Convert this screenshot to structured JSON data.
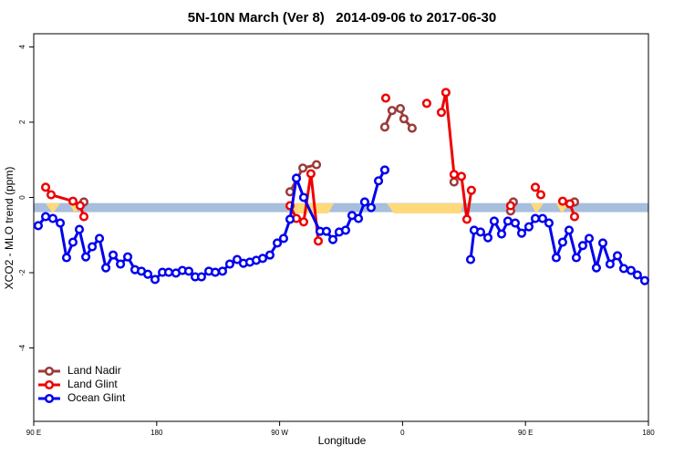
{
  "chart_data": {
    "type": "line",
    "title": "5N-10N March (Ver 8)   2014-09-06 to 2017-06-30",
    "x_label": "Longitude",
    "y_label": "XCO2 - MLO trend (ppm)",
    "xlim": [
      90,
      540
    ],
    "ylim": [
      -5.95,
      4.35
    ],
    "xticks": [
      {
        "value": 90,
        "label": "90 E"
      },
      {
        "value": 180,
        "label": "180"
      },
      {
        "value": 270,
        "label": "90 W"
      },
      {
        "value": 360,
        "label": "0"
      },
      {
        "value": 450,
        "label": "90 E"
      },
      {
        "value": 540,
        "label": "180"
      }
    ],
    "yticks": [
      -4,
      -2,
      0,
      2,
      4
    ],
    "band": {
      "ylim": [
        -0.39,
        -0.15
      ],
      "color": "#a7bedc"
    },
    "legend": "bottom-left",
    "series": [
      {
        "name": "Land Nadir",
        "color": "#9b3a3a",
        "x": [
          126.7,
          200,
          277.6,
          287.0,
          297.0,
          320,
          347.0,
          352.3,
          358.4,
          361.0,
          367.0,
          380,
          397.7,
          420,
          439.1,
          441.1,
          460,
          485.9
        ],
        "values": [
          -0.12,
          null,
          0.15,
          0.78,
          0.87,
          null,
          1.87,
          2.31,
          2.36,
          2.09,
          1.84,
          null,
          0.41,
          null,
          -0.36,
          -0.12,
          null,
          -0.12
        ]
      },
      {
        "name": "Land Glint",
        "color": "#ee0000",
        "x": [
          98.7,
          102.7,
          118.7,
          124.0,
          126.7,
          200,
          277.6,
          282.3,
          287.6,
          292.9,
          298.3,
          320,
          347.7,
          360,
          377.7,
          385,
          388.4,
          391.7,
          397.7,
          403.1,
          407.1,
          410.4,
          420,
          439.1,
          450,
          457.2,
          461.2,
          470,
          477.2,
          482.5,
          485.9
        ],
        "values": [
          0.27,
          0.07,
          -0.1,
          -0.22,
          -0.51,
          null,
          -0.22,
          -0.56,
          -0.65,
          0.63,
          -1.16,
          null,
          2.64,
          null,
          2.5,
          null,
          2.26,
          2.79,
          0.61,
          0.56,
          -0.58,
          0.19,
          null,
          -0.22,
          null,
          0.27,
          0.07,
          null,
          -0.1,
          -0.17,
          -0.51
        ]
      },
      {
        "name": "Ocean Glint",
        "color": "#0000ee",
        "x": [
          93.3,
          98.7,
          104.0,
          109.4,
          114.0,
          118.7,
          123.4,
          128.1,
          132.8,
          138.1,
          142.8,
          148.1,
          153.5,
          158.8,
          164.1,
          168.8,
          173.5,
          178.8,
          184.2,
          188.8,
          194.1,
          198.8,
          203.5,
          208.2,
          212.8,
          218.2,
          222.9,
          228.2,
          233.5,
          238.9,
          243.5,
          248.2,
          252.9,
          257.6,
          262.9,
          268.3,
          272.9,
          277.6,
          282.3,
          287.6,
          299.6,
          304.3,
          309.0,
          313.6,
          318.3,
          323.0,
          327.7,
          332.3,
          337.0,
          342.4,
          347.0,
          380,
          409.8,
          412.4,
          417.1,
          422.5,
          427.1,
          432.5,
          437.1,
          442.5,
          447.2,
          452.5,
          457.2,
          462.5,
          467.2,
          472.5,
          477.2,
          481.9,
          487.2,
          491.9,
          496.6,
          501.9,
          506.6,
          511.9,
          517.3,
          521.9,
          527.3,
          531.9,
          537.3
        ],
        "values": [
          -0.75,
          -0.51,
          -0.56,
          -0.68,
          -1.6,
          -1.19,
          -0.85,
          -1.58,
          -1.31,
          -1.09,
          -1.87,
          -1.53,
          -1.77,
          -1.58,
          -1.92,
          -1.96,
          -2.04,
          -2.18,
          -1.99,
          -1.99,
          -2.01,
          -1.94,
          -1.96,
          -2.11,
          -2.11,
          -1.96,
          -1.99,
          -1.96,
          -1.77,
          -1.65,
          -1.75,
          -1.72,
          -1.67,
          -1.62,
          -1.53,
          -1.21,
          -1.09,
          -0.58,
          0.51,
          0,
          -0.9,
          -0.9,
          -1.12,
          -0.92,
          -0.87,
          -0.48,
          -0.56,
          -0.12,
          -0.27,
          0.44,
          0.73,
          null,
          -1.65,
          -0.87,
          -0.92,
          -1.07,
          -0.63,
          -0.97,
          -0.63,
          -0.68,
          -0.95,
          -0.78,
          -0.56,
          -0.56,
          -0.68,
          -1.6,
          -1.19,
          -0.87,
          -1.6,
          -1.28,
          -1.09,
          -1.87,
          -1.21,
          -1.77,
          -1.55,
          -1.89,
          -1.94,
          -2.06,
          -2.21
        ]
      }
    ]
  }
}
